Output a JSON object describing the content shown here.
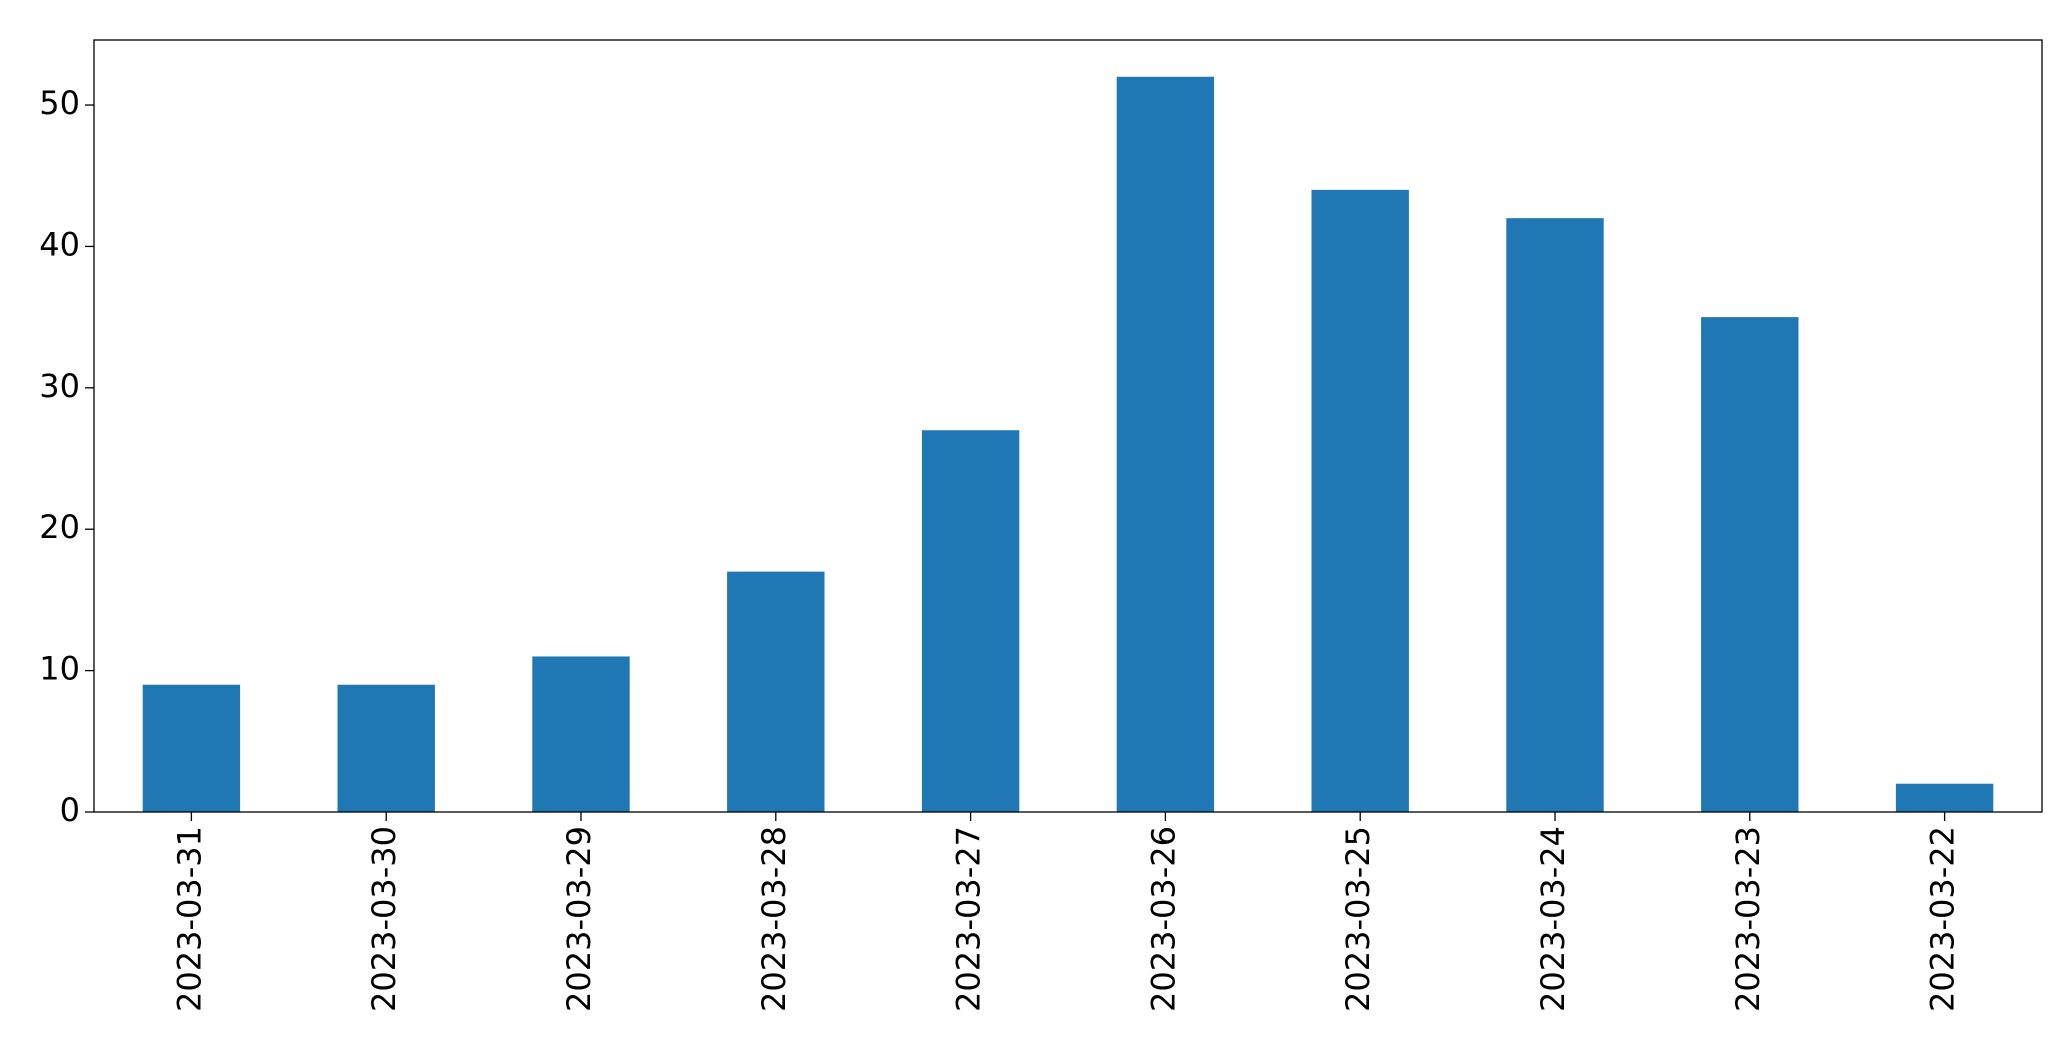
{
  "chart_data": {
    "type": "bar",
    "categories": [
      "2023-03-31",
      "2023-03-30",
      "2023-03-29",
      "2023-03-28",
      "2023-03-27",
      "2023-03-26",
      "2023-03-25",
      "2023-03-24",
      "2023-03-23",
      "2023-03-22"
    ],
    "values": [
      9,
      9,
      11,
      17,
      27,
      52,
      44,
      42,
      35,
      2
    ],
    "color": "#1f77b4",
    "ylim": [
      0,
      54.6
    ],
    "yticks": [
      0,
      10,
      20,
      30,
      40,
      50
    ],
    "grid": false
  }
}
